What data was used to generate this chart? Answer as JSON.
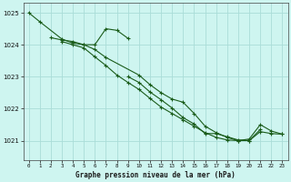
{
  "title": "Graphe pression niveau de la mer (hPa)",
  "background_color": "#cef5f0",
  "grid_color": "#aaddd8",
  "line_color": "#1a5c1a",
  "xlim": [
    -0.5,
    23.5
  ],
  "ylim": [
    1020.4,
    1025.3
  ],
  "yticks": [
    1021,
    1022,
    1023,
    1024,
    1025
  ],
  "xticks": [
    0,
    1,
    2,
    3,
    4,
    5,
    6,
    7,
    8,
    9,
    10,
    11,
    12,
    13,
    14,
    15,
    16,
    17,
    18,
    19,
    20,
    21,
    22,
    23
  ],
  "series": [
    {
      "x": [
        0,
        1,
        3,
        4,
        5,
        6,
        7,
        8,
        9
      ],
      "y": [
        1025.0,
        1024.72,
        1024.18,
        1024.05,
        1024.0,
        1024.0,
        1024.5,
        1024.45,
        1024.2
      ]
    },
    {
      "x": [
        2,
        3,
        4,
        5,
        6,
        7,
        10,
        11,
        12,
        13,
        14,
        15,
        16,
        17,
        18,
        19,
        20,
        21
      ],
      "y": [
        1024.22,
        1024.15,
        1024.1,
        1024.0,
        1023.85,
        1023.6,
        1023.05,
        1022.75,
        1022.5,
        1022.3,
        1022.2,
        1021.85,
        1021.45,
        1021.25,
        1021.1,
        1021.0,
        1021.0,
        1021.35
      ]
    },
    {
      "x": [
        3,
        4,
        5,
        6,
        7,
        8,
        9,
        10,
        11,
        12,
        13,
        14,
        15,
        16,
        17,
        18,
        19,
        20,
        21,
        22,
        23
      ],
      "y": [
        1024.1,
        1024.0,
        1023.9,
        1023.62,
        1023.35,
        1023.05,
        1022.82,
        1022.6,
        1022.32,
        1022.05,
        1021.85,
        1021.65,
        1021.45,
        1021.25,
        1021.1,
        1021.02,
        1021.0,
        1021.05,
        1021.5,
        1021.3,
        1021.2
      ]
    },
    {
      "x": [
        9,
        10,
        11,
        12,
        13,
        14,
        15,
        16,
        17,
        18,
        19,
        20,
        21,
        22,
        23
      ],
      "y": [
        1023.0,
        1022.82,
        1022.52,
        1022.28,
        1022.02,
        1021.72,
        1021.52,
        1021.22,
        1021.22,
        1021.12,
        1021.02,
        1021.0,
        1021.28,
        1021.22,
        1021.2
      ]
    }
  ]
}
